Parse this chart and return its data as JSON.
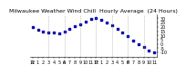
{
  "title": "Milwaukee Weather Wind Chill  Hourly Average  (24 Hours)",
  "title_fontsize": 4.5,
  "hours": [
    0,
    1,
    2,
    3,
    4,
    5,
    6,
    7,
    8,
    9,
    10,
    11,
    12,
    13,
    14,
    15,
    16,
    17,
    18,
    19,
    20,
    21,
    22,
    23
  ],
  "wind_chill": [
    20,
    17,
    15,
    13,
    14,
    12,
    15,
    18,
    21,
    23,
    26,
    29,
    30,
    28,
    25,
    22,
    18,
    14,
    9,
    4,
    0,
    -4,
    -8,
    -10
  ],
  "dot_color": "#0000cc",
  "bg_color": "#ffffff",
  "grid_color": "#999999",
  "ylim": [
    -15,
    35
  ],
  "ytick_values": [
    -10,
    -5,
    0,
    5,
    10,
    15,
    20,
    25,
    30
  ],
  "ytick_labels": [
    "-10",
    "-5",
    "0",
    "5",
    "10",
    "15",
    "20",
    "25",
    "30"
  ],
  "ylabel_color": "#000000",
  "tick_fontsize": 3.5,
  "marker_size": 1.8,
  "vline_hours": [
    3,
    6,
    9,
    12,
    15,
    18,
    21
  ],
  "xtick_positions": [
    0,
    1,
    2,
    3,
    4,
    5,
    6,
    7,
    8,
    9,
    10,
    11,
    12,
    13,
    14,
    15,
    16,
    17,
    18,
    19,
    20,
    21,
    22,
    23
  ],
  "xtick_labels_row1": [
    "12",
    "1",
    "2",
    "3",
    "4",
    "5",
    "6",
    "7",
    "8",
    "9",
    "10",
    "11",
    "12",
    "1",
    "2",
    "3",
    "4",
    "5",
    "6",
    "7",
    "8",
    "9",
    "10",
    "11"
  ],
  "xtick_labels_row2": [
    "A",
    "",
    "",
    "",
    "",
    "",
    "A",
    "",
    "",
    "",
    "",
    "",
    "P",
    "",
    "",
    "",
    "",
    "",
    "P",
    "",
    "",
    "",
    "",
    ""
  ]
}
